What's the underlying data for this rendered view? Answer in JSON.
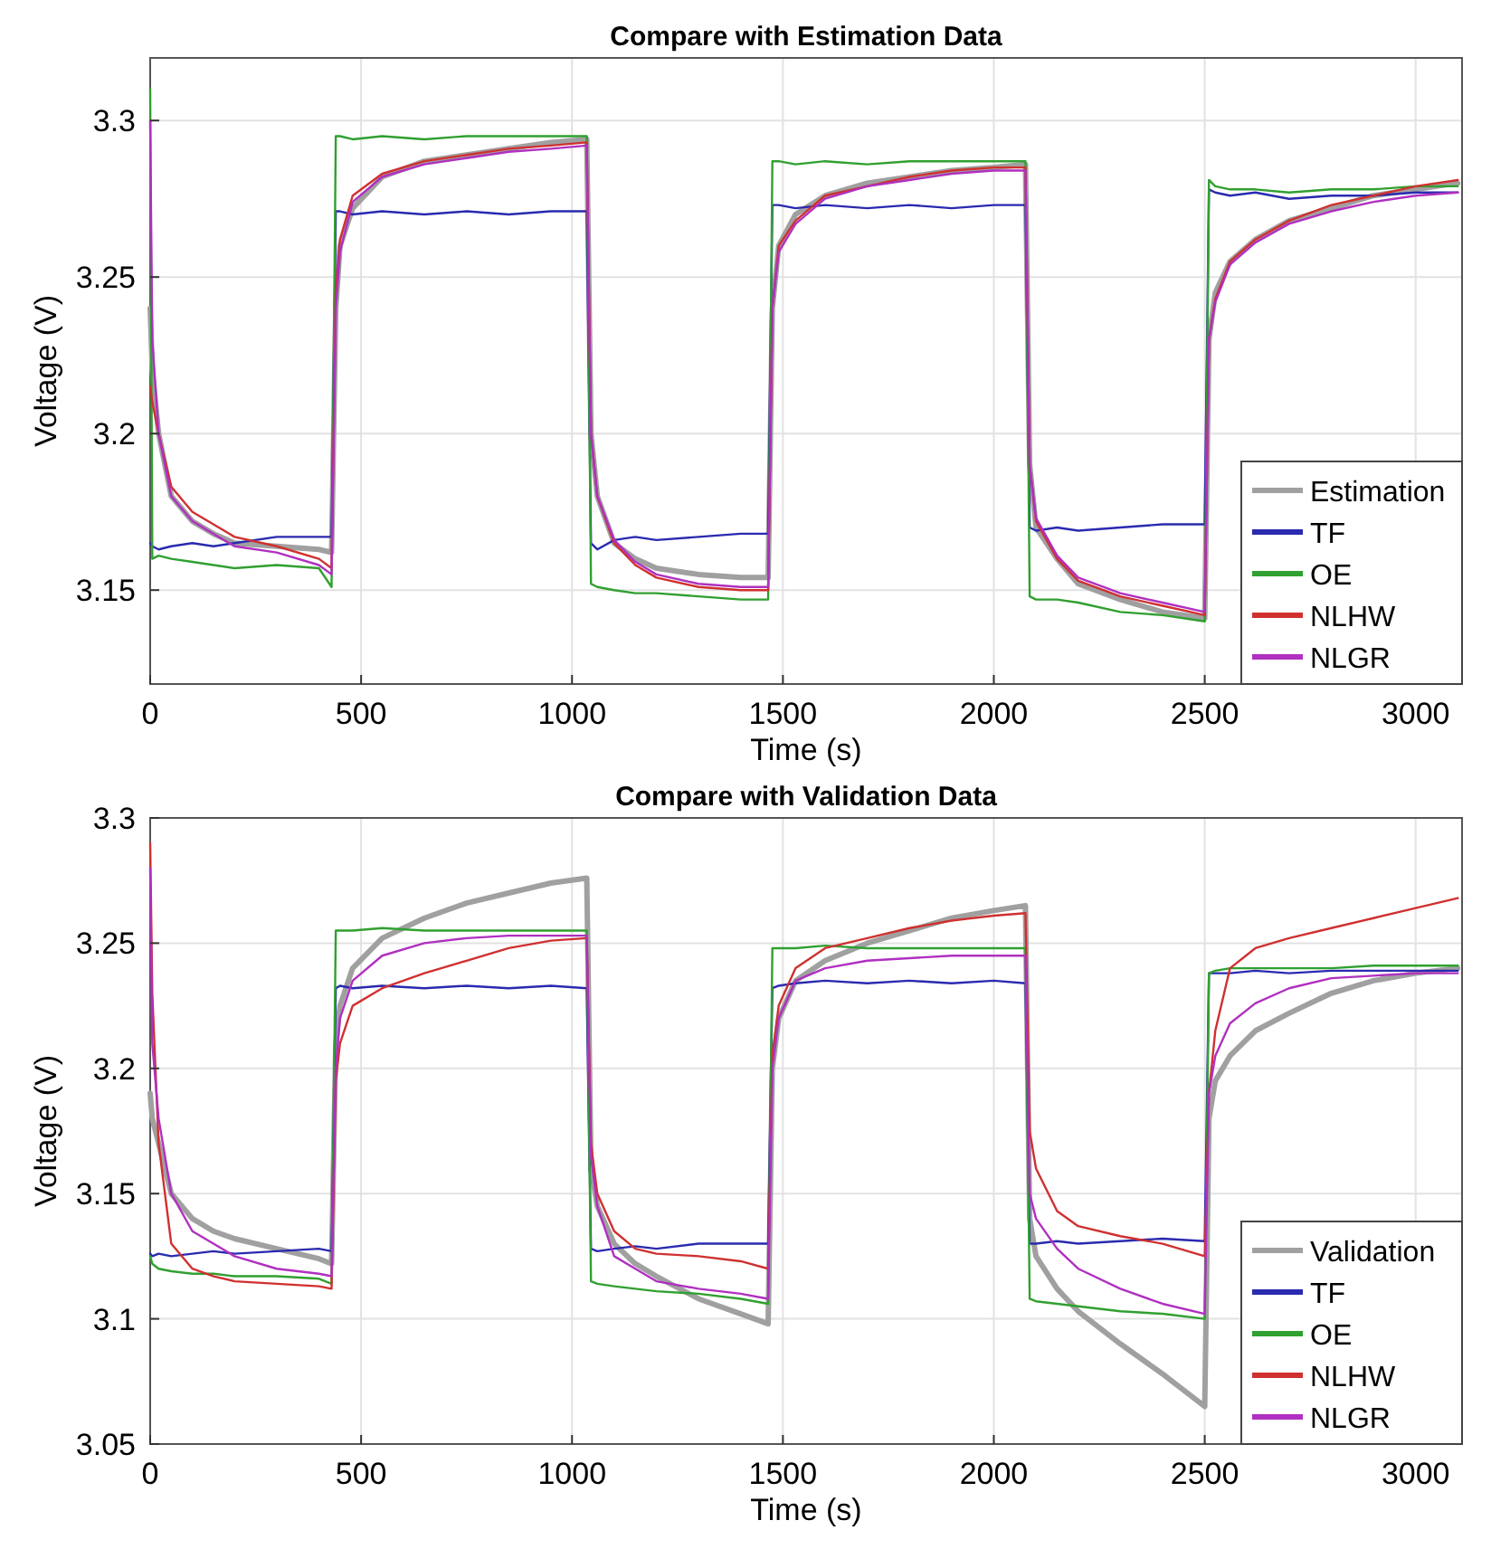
{
  "chart_data": [
    {
      "type": "line",
      "title": "Compare with Estimation Data",
      "xlabel": "Time (s)",
      "ylabel": "Voltage (V)",
      "xlim": [
        0,
        3110
      ],
      "ylim": [
        3.12,
        3.32
      ],
      "xticks": [
        0,
        500,
        1000,
        1500,
        2000,
        2500,
        3000
      ],
      "yticks": [
        3.15,
        3.2,
        3.25,
        3.3
      ],
      "grid": true,
      "legend": "bottom right",
      "marker": "none",
      "line_style": "solid",
      "x": [
        0,
        5,
        20,
        50,
        100,
        150,
        200,
        300,
        400,
        430,
        440,
        450,
        480,
        550,
        650,
        750,
        850,
        950,
        1035,
        1045,
        1060,
        1100,
        1150,
        1200,
        1300,
        1400,
        1465,
        1475,
        1490,
        1530,
        1600,
        1700,
        1800,
        1900,
        2000,
        2075,
        2085,
        2100,
        2150,
        2200,
        2300,
        2400,
        2500,
        2510,
        2525,
        2560,
        2620,
        2700,
        2800,
        2900,
        3000,
        3100
      ],
      "series": [
        {
          "name": "Estimation",
          "color": "#a0a0a0",
          "values": [
            3.24,
            3.22,
            3.2,
            3.18,
            3.172,
            3.168,
            3.165,
            3.164,
            3.163,
            3.162,
            3.24,
            3.26,
            3.272,
            3.282,
            3.287,
            3.289,
            3.291,
            3.293,
            3.294,
            3.2,
            3.18,
            3.165,
            3.16,
            3.157,
            3.155,
            3.154,
            3.154,
            3.24,
            3.26,
            3.27,
            3.276,
            3.28,
            3.282,
            3.284,
            3.285,
            3.286,
            3.19,
            3.17,
            3.16,
            3.152,
            3.147,
            3.143,
            3.141,
            3.23,
            3.245,
            3.255,
            3.262,
            3.268,
            3.272,
            3.276,
            3.278,
            3.28
          ]
        },
        {
          "name": "TF",
          "color": "#2a2ab0",
          "values": [
            3.165,
            3.164,
            3.163,
            3.164,
            3.165,
            3.164,
            3.165,
            3.167,
            3.167,
            3.167,
            3.271,
            3.271,
            3.27,
            3.271,
            3.27,
            3.271,
            3.27,
            3.271,
            3.271,
            3.165,
            3.163,
            3.166,
            3.167,
            3.166,
            3.167,
            3.168,
            3.168,
            3.273,
            3.273,
            3.272,
            3.273,
            3.272,
            3.273,
            3.272,
            3.273,
            3.273,
            3.17,
            3.169,
            3.17,
            3.169,
            3.17,
            3.171,
            3.171,
            3.278,
            3.277,
            3.276,
            3.277,
            3.275,
            3.276,
            3.276,
            3.277,
            3.277
          ]
        },
        {
          "name": "OE",
          "color": "#30a030",
          "values": [
            3.31,
            3.16,
            3.161,
            3.16,
            3.159,
            3.158,
            3.157,
            3.158,
            3.157,
            3.151,
            3.295,
            3.295,
            3.294,
            3.295,
            3.294,
            3.295,
            3.295,
            3.295,
            3.295,
            3.152,
            3.151,
            3.15,
            3.149,
            3.149,
            3.148,
            3.147,
            3.147,
            3.287,
            3.287,
            3.286,
            3.287,
            3.286,
            3.287,
            3.287,
            3.287,
            3.287,
            3.148,
            3.147,
            3.147,
            3.146,
            3.143,
            3.142,
            3.14,
            3.281,
            3.279,
            3.278,
            3.278,
            3.277,
            3.278,
            3.278,
            3.279,
            3.279
          ]
        },
        {
          "name": "NLHW",
          "color": "#d03030",
          "values": [
            3.215,
            3.21,
            3.2,
            3.183,
            3.175,
            3.171,
            3.167,
            3.164,
            3.16,
            3.157,
            3.245,
            3.262,
            3.276,
            3.283,
            3.287,
            3.289,
            3.291,
            3.292,
            3.293,
            3.2,
            3.18,
            3.165,
            3.158,
            3.154,
            3.151,
            3.15,
            3.15,
            3.24,
            3.26,
            3.268,
            3.276,
            3.279,
            3.282,
            3.284,
            3.285,
            3.285,
            3.19,
            3.172,
            3.16,
            3.153,
            3.148,
            3.145,
            3.142,
            3.23,
            3.243,
            3.255,
            3.262,
            3.268,
            3.273,
            3.276,
            3.279,
            3.281
          ]
        },
        {
          "name": "NLGR",
          "color": "#b030c0",
          "values": [
            3.3,
            3.23,
            3.2,
            3.18,
            3.172,
            3.168,
            3.164,
            3.162,
            3.158,
            3.155,
            3.24,
            3.258,
            3.274,
            3.282,
            3.286,
            3.288,
            3.29,
            3.291,
            3.292,
            3.2,
            3.18,
            3.166,
            3.159,
            3.155,
            3.152,
            3.151,
            3.151,
            3.24,
            3.258,
            3.267,
            3.275,
            3.279,
            3.281,
            3.283,
            3.284,
            3.284,
            3.19,
            3.173,
            3.161,
            3.154,
            3.149,
            3.146,
            3.143,
            3.23,
            3.242,
            3.254,
            3.261,
            3.267,
            3.271,
            3.274,
            3.276,
            3.277
          ]
        }
      ]
    },
    {
      "type": "line",
      "title": "Compare with Validation Data",
      "xlabel": "Time (s)",
      "ylabel": "Voltage (V)",
      "xlim": [
        0,
        3110
      ],
      "ylim": [
        3.05,
        3.3
      ],
      "xticks": [
        0,
        500,
        1000,
        1500,
        2000,
        2500,
        3000
      ],
      "yticks": [
        3.05,
        3.1,
        3.15,
        3.2,
        3.25,
        3.3
      ],
      "grid": true,
      "legend": "bottom right",
      "marker": "none",
      "line_style": "solid",
      "x": [
        0,
        5,
        20,
        50,
        100,
        150,
        200,
        300,
        400,
        430,
        440,
        450,
        480,
        550,
        650,
        750,
        850,
        950,
        1035,
        1045,
        1060,
        1100,
        1150,
        1200,
        1300,
        1400,
        1465,
        1475,
        1490,
        1530,
        1600,
        1700,
        1800,
        1900,
        2000,
        2075,
        2085,
        2100,
        2150,
        2200,
        2300,
        2400,
        2500,
        2510,
        2525,
        2560,
        2620,
        2700,
        2800,
        2900,
        3000,
        3100
      ],
      "series": [
        {
          "name": "Validation",
          "color": "#a0a0a0",
          "values": [
            3.19,
            3.18,
            3.17,
            3.15,
            3.14,
            3.135,
            3.132,
            3.128,
            3.124,
            3.122,
            3.21,
            3.225,
            3.24,
            3.252,
            3.26,
            3.266,
            3.27,
            3.274,
            3.276,
            3.16,
            3.145,
            3.13,
            3.122,
            3.117,
            3.108,
            3.102,
            3.098,
            3.2,
            3.22,
            3.235,
            3.243,
            3.25,
            3.255,
            3.26,
            3.263,
            3.265,
            3.14,
            3.125,
            3.112,
            3.103,
            3.09,
            3.078,
            3.065,
            3.18,
            3.195,
            3.205,
            3.215,
            3.222,
            3.23,
            3.235,
            3.238,
            3.24
          ]
        },
        {
          "name": "TF",
          "color": "#2a2ab0",
          "values": [
            3.126,
            3.125,
            3.126,
            3.125,
            3.126,
            3.127,
            3.126,
            3.127,
            3.128,
            3.127,
            3.232,
            3.233,
            3.232,
            3.233,
            3.232,
            3.233,
            3.232,
            3.233,
            3.232,
            3.128,
            3.127,
            3.128,
            3.129,
            3.128,
            3.13,
            3.13,
            3.13,
            3.232,
            3.233,
            3.234,
            3.235,
            3.234,
            3.235,
            3.234,
            3.235,
            3.234,
            3.13,
            3.13,
            3.131,
            3.13,
            3.131,
            3.132,
            3.131,
            3.238,
            3.238,
            3.238,
            3.239,
            3.238,
            3.239,
            3.239,
            3.239,
            3.239
          ]
        },
        {
          "name": "OE",
          "color": "#30a030",
          "values": [
            3.125,
            3.122,
            3.12,
            3.119,
            3.118,
            3.118,
            3.117,
            3.117,
            3.116,
            3.114,
            3.255,
            3.255,
            3.255,
            3.256,
            3.255,
            3.255,
            3.255,
            3.255,
            3.255,
            3.115,
            3.114,
            3.113,
            3.112,
            3.111,
            3.11,
            3.108,
            3.106,
            3.248,
            3.248,
            3.248,
            3.249,
            3.248,
            3.248,
            3.248,
            3.248,
            3.248,
            3.108,
            3.107,
            3.106,
            3.105,
            3.103,
            3.102,
            3.1,
            3.238,
            3.239,
            3.24,
            3.24,
            3.24,
            3.24,
            3.241,
            3.241,
            3.241
          ]
        },
        {
          "name": "NLHW",
          "color": "#d03030",
          "values": [
            3.29,
            3.23,
            3.17,
            3.13,
            3.12,
            3.117,
            3.115,
            3.114,
            3.113,
            3.112,
            3.195,
            3.21,
            3.225,
            3.232,
            3.238,
            3.243,
            3.248,
            3.251,
            3.252,
            3.17,
            3.15,
            3.135,
            3.128,
            3.126,
            3.125,
            3.123,
            3.12,
            3.205,
            3.225,
            3.24,
            3.248,
            3.252,
            3.256,
            3.259,
            3.261,
            3.262,
            3.175,
            3.16,
            3.143,
            3.137,
            3.133,
            3.13,
            3.125,
            3.19,
            3.215,
            3.24,
            3.248,
            3.252,
            3.256,
            3.26,
            3.264,
            3.268
          ]
        },
        {
          "name": "NLGR",
          "color": "#b030c0",
          "values": [
            3.28,
            3.21,
            3.18,
            3.15,
            3.135,
            3.13,
            3.125,
            3.12,
            3.118,
            3.117,
            3.2,
            3.22,
            3.235,
            3.245,
            3.25,
            3.252,
            3.253,
            3.253,
            3.253,
            3.165,
            3.145,
            3.125,
            3.12,
            3.115,
            3.112,
            3.11,
            3.108,
            3.2,
            3.22,
            3.235,
            3.24,
            3.243,
            3.244,
            3.245,
            3.245,
            3.245,
            3.15,
            3.14,
            3.128,
            3.12,
            3.112,
            3.106,
            3.102,
            3.19,
            3.205,
            3.218,
            3.226,
            3.232,
            3.236,
            3.237,
            3.238,
            3.238
          ]
        }
      ]
    }
  ]
}
